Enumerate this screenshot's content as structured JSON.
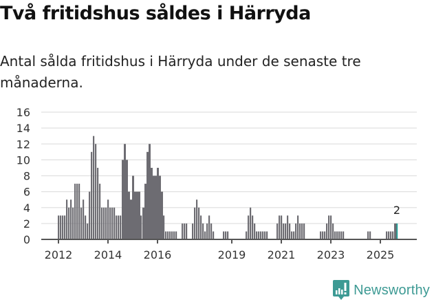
{
  "header": {
    "title": "Två fritidshus såldes i Härryda",
    "subtitle": "Antal sålda fritidshus i Härryda under de senaste tre månaderna."
  },
  "brand": {
    "name": "Newsworthy",
    "color": "#3d9a94"
  },
  "colors": {
    "bar": "#6d6c72",
    "highlight": "#1aa39a",
    "grid": "#e0e0e0",
    "axis": "#555555",
    "tick_text": "#333333"
  },
  "chart_data": {
    "type": "bar",
    "title": "Två fritidshus såldes i Härryda",
    "subtitle": "Antal sålda fritidshus i Härryda under de senaste tre månaderna.",
    "xlabel": "",
    "ylabel": "",
    "ylim": [
      0,
      16
    ],
    "yticks": [
      0,
      2,
      4,
      6,
      8,
      10,
      12,
      14,
      16
    ],
    "xticks": [
      "2012",
      "2014",
      "2016",
      "2019",
      "2021",
      "2023",
      "2025"
    ],
    "grid": true,
    "legend": false,
    "frequency": "monthly (rolling 3-month)",
    "start": "2012-01",
    "annotation": {
      "label": "2",
      "at": "last"
    },
    "values": [
      3,
      3,
      3,
      3,
      5,
      4,
      5,
      4,
      7,
      7,
      7,
      4,
      5,
      3,
      2,
      6,
      11,
      13,
      12,
      9,
      7,
      4,
      4,
      4,
      5,
      4,
      4,
      4,
      3,
      3,
      3,
      10,
      12,
      10,
      6,
      5,
      8,
      6,
      6,
      6,
      3,
      4,
      7,
      11,
      12,
      9,
      8,
      8,
      9,
      8,
      6,
      3,
      1,
      1,
      1,
      1,
      1,
      1,
      0,
      0,
      2,
      2,
      2,
      0,
      0,
      2,
      4,
      5,
      4,
      3,
      2,
      1,
      2,
      3,
      2,
      1,
      0,
      0,
      0,
      0,
      1,
      1,
      1,
      0,
      0,
      0,
      0,
      0,
      0,
      0,
      0,
      1,
      3,
      4,
      3,
      2,
      1,
      1,
      1,
      1,
      1,
      1,
      0,
      0,
      0,
      0,
      2,
      3,
      3,
      2,
      2,
      3,
      2,
      1,
      1,
      2,
      3,
      2,
      2,
      2,
      0,
      0,
      0,
      0,
      0,
      0,
      0,
      1,
      1,
      1,
      2,
      3,
      3,
      2,
      1,
      1,
      1,
      1,
      1,
      0,
      0,
      0,
      0,
      0,
      0,
      0,
      0,
      0,
      0,
      0,
      1,
      1,
      0,
      0,
      0,
      0,
      0,
      0,
      0,
      1,
      1,
      1,
      1,
      2,
      2
    ]
  }
}
